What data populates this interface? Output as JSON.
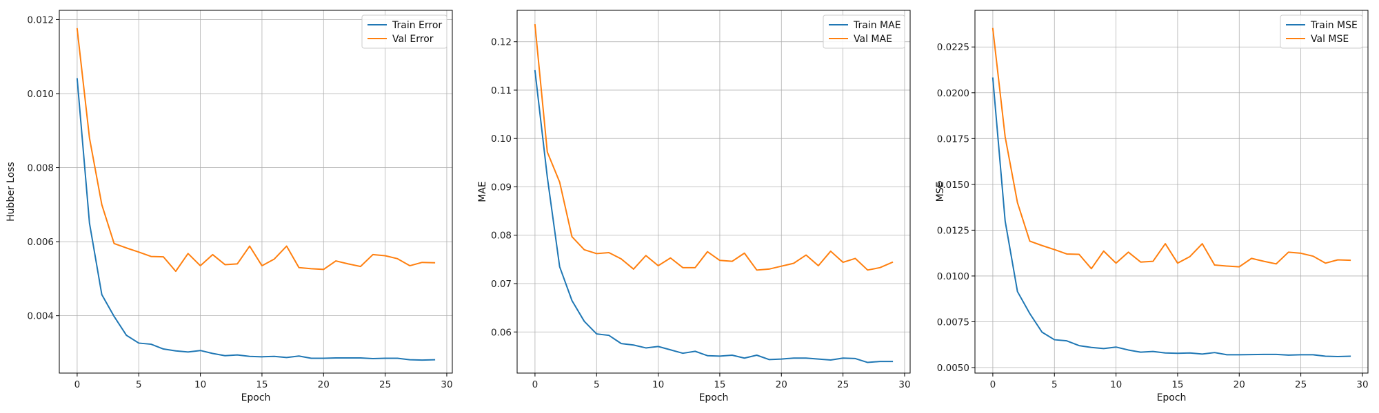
{
  "chart_data": [
    {
      "type": "line",
      "title": "",
      "xlabel": "Epoch",
      "ylabel": "Hubber Loss",
      "xlim": [
        -1.45,
        30.45
      ],
      "ylim": [
        0.00245,
        0.01225
      ],
      "xticks": [
        0,
        5,
        10,
        15,
        20,
        25,
        30
      ],
      "yticks": [
        0.004,
        0.006,
        0.008,
        0.01,
        0.012
      ],
      "ytick_labels": [
        "0.004",
        "0.006",
        "0.008",
        "0.010",
        "0.012"
      ],
      "grid": true,
      "legend": "top-right",
      "x": [
        0,
        1,
        2,
        3,
        4,
        5,
        6,
        7,
        8,
        9,
        10,
        11,
        12,
        13,
        14,
        15,
        16,
        17,
        18,
        19,
        20,
        21,
        22,
        23,
        24,
        25,
        26,
        27,
        28,
        29
      ],
      "series": [
        {
          "name": "Train Error",
          "color": "#1f77b4",
          "values": [
            0.0104,
            0.0065,
            0.00457,
            0.00398,
            0.00347,
            0.00326,
            0.00323,
            0.0031,
            0.00305,
            0.00302,
            0.00306,
            0.00298,
            0.00292,
            0.00294,
            0.0029,
            0.00289,
            0.0029,
            0.00287,
            0.00291,
            0.00285,
            0.00285,
            0.00286,
            0.00286,
            0.00286,
            0.00284,
            0.00285,
            0.00285,
            0.00281,
            0.0028,
            0.00281
          ]
        },
        {
          "name": "Val Error",
          "color": "#ff7f0e",
          "values": [
            0.01175,
            0.0088,
            0.007,
            0.00595,
            0.00583,
            0.00572,
            0.0056,
            0.00559,
            0.0052,
            0.00568,
            0.00535,
            0.00565,
            0.00538,
            0.0054,
            0.00588,
            0.00535,
            0.00553,
            0.00588,
            0.0053,
            0.00527,
            0.00525,
            0.00548,
            0.0054,
            0.00533,
            0.00565,
            0.00562,
            0.00554,
            0.00535,
            0.00544,
            0.00543
          ]
        }
      ]
    },
    {
      "type": "line",
      "title": "",
      "xlabel": "Epoch",
      "ylabel": "MAE",
      "xlim": [
        -1.45,
        30.45
      ],
      "ylim": [
        0.0515,
        0.1265
      ],
      "xticks": [
        0,
        5,
        10,
        15,
        20,
        25,
        30
      ],
      "yticks": [
        0.06,
        0.07,
        0.08,
        0.09,
        0.1,
        0.11,
        0.12
      ],
      "ytick_labels": [
        "0.06",
        "0.07",
        "0.08",
        "0.09",
        "0.10",
        "0.11",
        "0.12"
      ],
      "grid": true,
      "legend": "top-right",
      "x": [
        0,
        1,
        2,
        3,
        4,
        5,
        6,
        7,
        8,
        9,
        10,
        11,
        12,
        13,
        14,
        15,
        16,
        17,
        18,
        19,
        20,
        21,
        22,
        23,
        24,
        25,
        26,
        27,
        28,
        29
      ],
      "series": [
        {
          "name": "Train MAE",
          "color": "#1f77b4",
          "values": [
            0.114,
            0.092,
            0.0735,
            0.0665,
            0.0622,
            0.0596,
            0.0593,
            0.0576,
            0.0573,
            0.0567,
            0.057,
            0.0563,
            0.0556,
            0.056,
            0.0551,
            0.055,
            0.0552,
            0.0546,
            0.0552,
            0.0543,
            0.0544,
            0.0546,
            0.0546,
            0.0544,
            0.0542,
            0.0546,
            0.0545,
            0.0537,
            0.0539,
            0.0539
          ]
        },
        {
          "name": "Val MAE",
          "color": "#ff7f0e",
          "values": [
            0.1235,
            0.0972,
            0.091,
            0.0797,
            0.077,
            0.0762,
            0.0764,
            0.0751,
            0.073,
            0.0758,
            0.0737,
            0.0753,
            0.0733,
            0.0733,
            0.0766,
            0.0748,
            0.0746,
            0.0763,
            0.0728,
            0.073,
            0.0736,
            0.0742,
            0.0759,
            0.0737,
            0.0767,
            0.0744,
            0.0752,
            0.0728,
            0.0733,
            0.0744
          ]
        }
      ]
    },
    {
      "type": "line",
      "title": "",
      "xlabel": "Epoch",
      "ylabel": "MSE",
      "xlim": [
        -1.45,
        30.45
      ],
      "ylim": [
        0.0047,
        0.0245
      ],
      "xticks": [
        0,
        5,
        10,
        15,
        20,
        25,
        30
      ],
      "yticks": [
        0.005,
        0.0075,
        0.01,
        0.0125,
        0.015,
        0.0175,
        0.02,
        0.0225
      ],
      "ytick_labels": [
        "0.0050",
        "0.0075",
        "0.0100",
        "0.0125",
        "0.0150",
        "0.0175",
        "0.0200",
        "0.0225"
      ],
      "grid": true,
      "legend": "top-right",
      "x": [
        0,
        1,
        2,
        3,
        4,
        5,
        6,
        7,
        8,
        9,
        10,
        11,
        12,
        13,
        14,
        15,
        16,
        17,
        18,
        19,
        20,
        21,
        22,
        23,
        24,
        25,
        26,
        27,
        28,
        29
      ],
      "series": [
        {
          "name": "Train MSE",
          "color": "#1f77b4",
          "values": [
            0.0208,
            0.013,
            0.00915,
            0.00795,
            0.00693,
            0.00652,
            0.00646,
            0.0062,
            0.0061,
            0.00604,
            0.00612,
            0.00596,
            0.00584,
            0.00588,
            0.0058,
            0.00578,
            0.0058,
            0.00574,
            0.00582,
            0.0057,
            0.0057,
            0.00571,
            0.00572,
            0.00572,
            0.00568,
            0.0057,
            0.0057,
            0.00562,
            0.0056,
            0.00562
          ]
        },
        {
          "name": "Val MSE",
          "color": "#ff7f0e",
          "values": [
            0.0235,
            0.0176,
            0.014,
            0.0119,
            0.01166,
            0.01144,
            0.0112,
            0.01118,
            0.0104,
            0.01136,
            0.0107,
            0.0113,
            0.01076,
            0.0108,
            0.01176,
            0.0107,
            0.01106,
            0.01176,
            0.0106,
            0.01054,
            0.0105,
            0.01096,
            0.0108,
            0.01066,
            0.0113,
            0.01124,
            0.01108,
            0.0107,
            0.01088,
            0.01086
          ]
        }
      ]
    }
  ]
}
